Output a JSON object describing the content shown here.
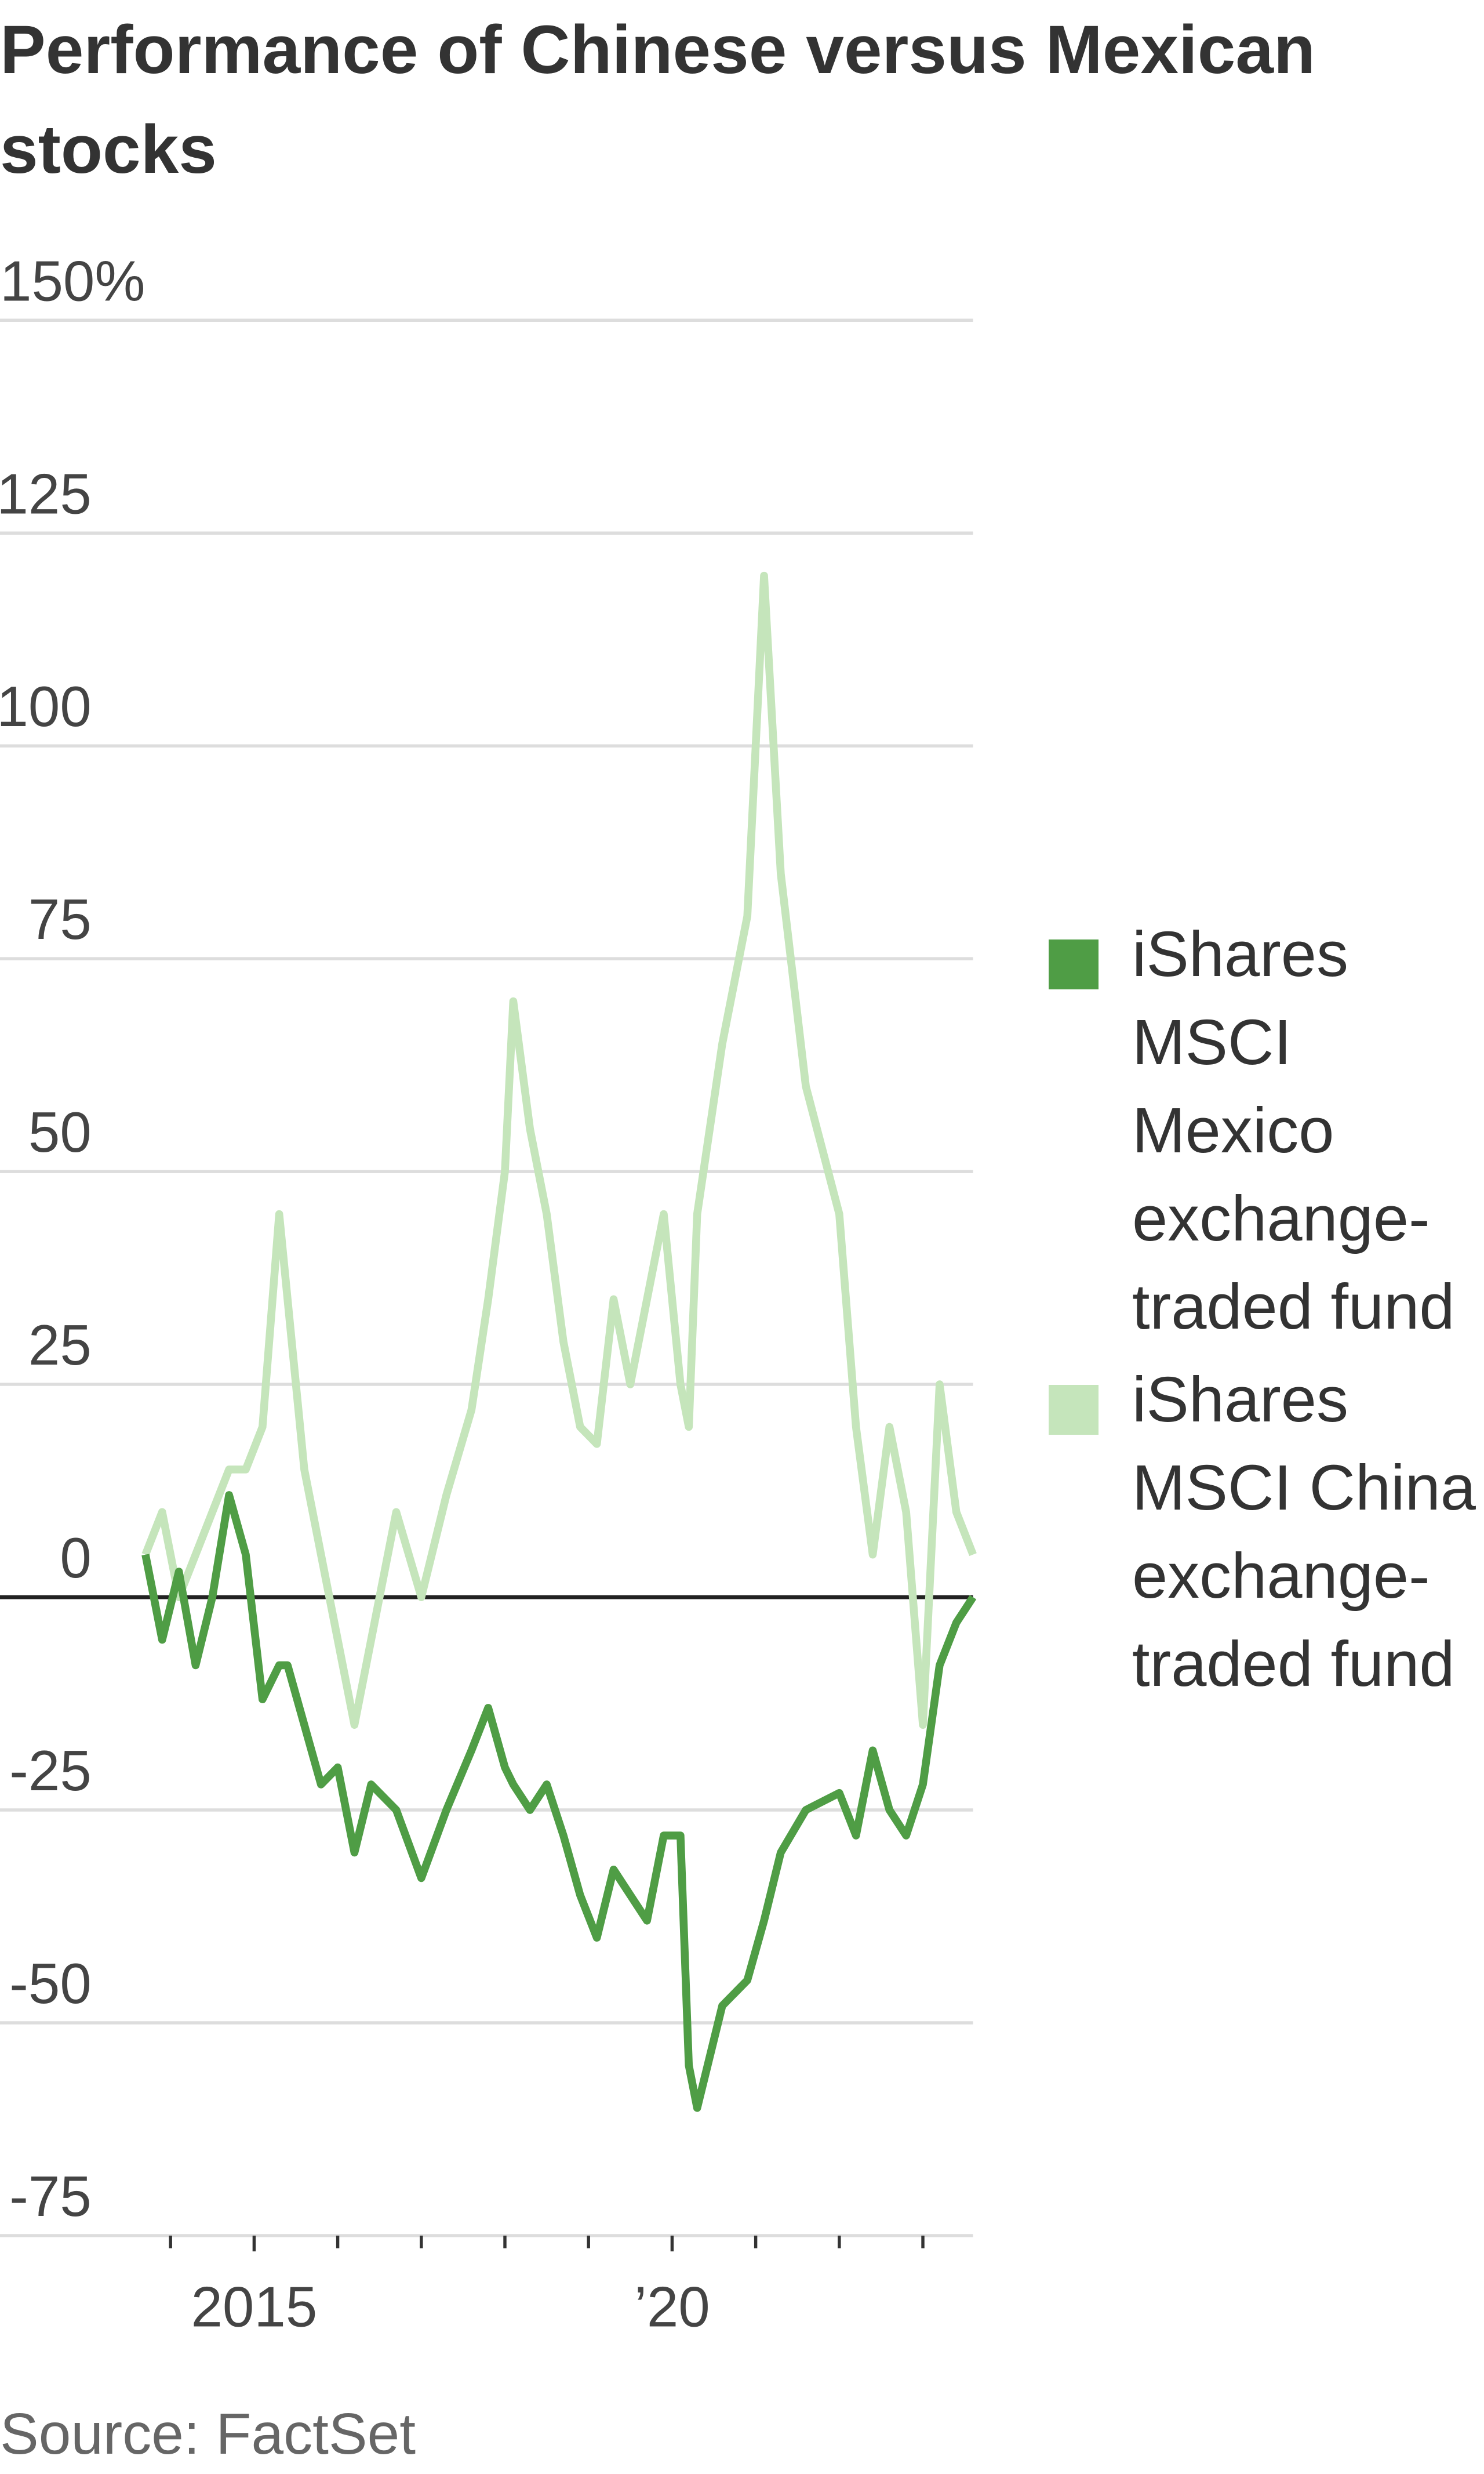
{
  "chart_data": {
    "type": "line",
    "title": "Performance of Chinese versus Mexican stocks",
    "source": "Source: FactSet",
    "x": [
      2013.7,
      2013.9,
      2014.1,
      2014.3,
      2014.5,
      2014.7,
      2014.9,
      2015.1,
      2015.3,
      2015.4,
      2015.6,
      2015.8,
      2016.0,
      2016.2,
      2016.4,
      2016.7,
      2017.0,
      2017.3,
      2017.6,
      2017.8,
      2018.0,
      2018.1,
      2018.3,
      2018.5,
      2018.7,
      2018.9,
      2019.1,
      2019.3,
      2019.5,
      2019.7,
      2019.9,
      2020.1,
      2020.2,
      2020.3,
      2020.6,
      2020.9,
      2021.1,
      2021.3,
      2021.6,
      2022.0,
      2022.2,
      2022.4,
      2022.6,
      2022.8,
      2023.0,
      2023.2,
      2023.4,
      2023.6
    ],
    "series": [
      {
        "name": "iShares MSCI Mexico exchange-traded fund",
        "color": "#4f9d45",
        "values": [
          5,
          -5,
          3,
          -8,
          0,
          12,
          5,
          -12,
          -8,
          -8,
          -15,
          -22,
          -20,
          -30,
          -22,
          -25,
          -33,
          -25,
          -18,
          -13,
          -20,
          -22,
          -25,
          -22,
          -28,
          -35,
          -40,
          -32,
          -35,
          -38,
          -28,
          -28,
          -55,
          -60,
          -48,
          -45,
          -38,
          -30,
          -25,
          -23,
          -28,
          -18,
          -25,
          -28,
          -22,
          -8,
          -3,
          0
        ]
      },
      {
        "name": "iShares MSCI China exchange-traded fund",
        "color": "#c5e5bb",
        "values": [
          5,
          10,
          0,
          5,
          10,
          15,
          15,
          20,
          45,
          35,
          15,
          5,
          -5,
          -15,
          -5,
          10,
          0,
          12,
          22,
          35,
          50,
          70,
          55,
          45,
          30,
          20,
          18,
          35,
          25,
          35,
          45,
          25,
          20,
          45,
          65,
          80,
          120,
          85,
          60,
          45,
          20,
          5,
          20,
          10,
          -15,
          25,
          10,
          5
        ]
      }
    ],
    "xlim": [
      2011.96,
      2023.6
    ],
    "xticks": [
      2015,
      {
        "value": 2020,
        "label": "’20"
      }
    ],
    "xminor_ticks": [
      2014,
      2016,
      2017,
      2018,
      2019,
      2021,
      2022,
      2023
    ],
    "ylim": [
      -75,
      150
    ],
    "yticks": [
      {
        "value": 150,
        "label": "150%"
      },
      125,
      100,
      75,
      50,
      25,
      0,
      -25,
      -50,
      -75
    ],
    "grid": true
  }
}
